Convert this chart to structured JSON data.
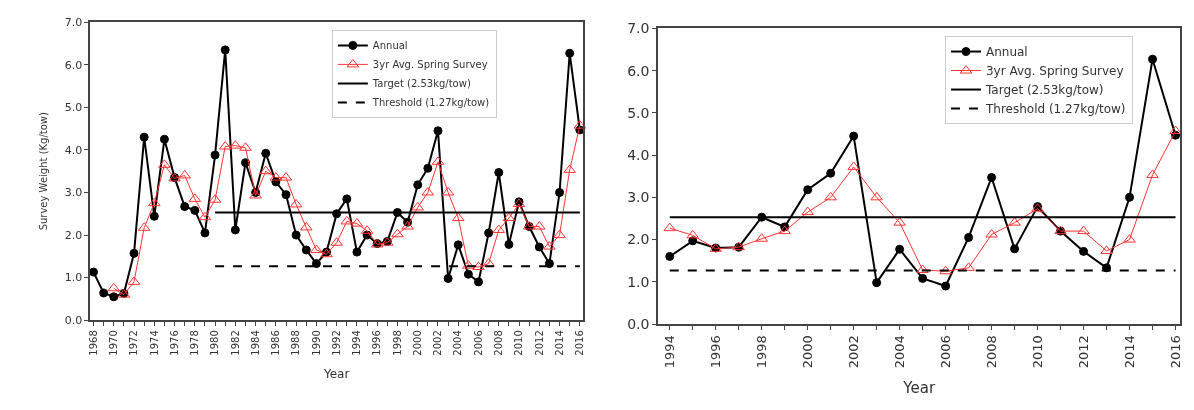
{
  "chart_data": [
    {
      "type": "line",
      "xlabel": "Year",
      "ylabel": "Survey Weight (Kg/tow)",
      "legend": "top right",
      "xlim": [
        1967.7,
        2016.3
      ],
      "ylim": [
        0,
        7
      ],
      "yticks": [
        {
          "value": 0,
          "label": "0.0"
        },
        {
          "value": 1,
          "label": "1.0"
        },
        {
          "value": 2,
          "label": "2.0"
        },
        {
          "value": 3,
          "label": "3.0"
        },
        {
          "value": 4,
          "label": "4.0"
        },
        {
          "value": 5,
          "label": "5.0"
        },
        {
          "value": 6,
          "label": "6.0"
        },
        {
          "value": 7,
          "label": "7.0"
        }
      ],
      "xticks": [
        1968,
        {
          "value": 1969,
          "label": null
        },
        1970,
        {
          "value": 1971,
          "label": null
        },
        1972,
        {
          "value": 1973,
          "label": null
        },
        1974,
        {
          "value": 1975,
          "label": null
        },
        1976,
        {
          "value": 1977,
          "label": null
        },
        1978,
        {
          "value": 1979,
          "label": null
        },
        1980,
        {
          "value": 1981,
          "label": null
        },
        1982,
        {
          "value": 1983,
          "label": null
        },
        1984,
        {
          "value": 1985,
          "label": null
        },
        1986,
        {
          "value": 1987,
          "label": null
        },
        1988,
        {
          "value": 1989,
          "label": null
        },
        1990,
        {
          "value": 1991,
          "label": null
        },
        1992,
        {
          "value": 1993,
          "label": null
        },
        1994,
        {
          "value": 1995,
          "label": null
        },
        1996,
        {
          "value": 1997,
          "label": null
        },
        1998,
        {
          "value": 1999,
          "label": null
        },
        2000,
        {
          "value": 2001,
          "label": null
        },
        2002,
        {
          "value": 2003,
          "label": null
        },
        2004,
        {
          "value": 2005,
          "label": null
        },
        2006,
        {
          "value": 2007,
          "label": null
        },
        2008,
        {
          "value": 2009,
          "label": null
        },
        2010,
        {
          "value": 2011,
          "label": null
        },
        2012,
        {
          "value": 2013,
          "label": null
        },
        2014,
        {
          "value": 2015,
          "label": null
        },
        2016
      ],
      "series": [
        {
          "name": "Annual",
          "color": "#000000",
          "marker": "circle",
          "line_style": "solid",
          "x": [
            1968,
            1969,
            1970,
            1971,
            1972,
            1973,
            1974,
            1975,
            1976,
            1977,
            1978,
            1979,
            1980,
            1981,
            1982,
            1983,
            1984,
            1985,
            1986,
            1987,
            1988,
            1989,
            1990,
            1991,
            1992,
            1993,
            1994,
            1995,
            1996,
            1997,
            1998,
            1999,
            2000,
            2001,
            2002,
            2003,
            2004,
            2005,
            2006,
            2007,
            2008,
            2009,
            2010,
            2011,
            2012,
            2013,
            2014,
            2015,
            2016
          ],
          "values": [
            1.13,
            0.64,
            0.55,
            0.63,
            1.57,
            4.3,
            2.44,
            4.25,
            3.35,
            2.67,
            2.58,
            2.05,
            3.88,
            6.35,
            2.12,
            3.7,
            3.0,
            3.92,
            3.25,
            2.95,
            2.0,
            1.65,
            1.33,
            1.6,
            2.5,
            2.85,
            1.6,
            2.0,
            1.8,
            1.85,
            2.53,
            2.3,
            3.18,
            3.57,
            4.45,
            0.98,
            1.77,
            1.08,
            0.9,
            2.05,
            3.47,
            1.78,
            2.78,
            2.2,
            1.72,
            1.33,
            3.0,
            6.27,
            4.47
          ]
        },
        {
          "name": "3yr Avg. Spring Survey",
          "color": "#ff3333",
          "marker": "triangle",
          "line_style": "solid",
          "x": [
            1970,
            1971,
            1972,
            1973,
            1974,
            1975,
            1976,
            1977,
            1978,
            1979,
            1980,
            1981,
            1982,
            1983,
            1984,
            1985,
            1986,
            1987,
            1988,
            1989,
            1990,
            1991,
            1992,
            1993,
            1994,
            1995,
            1996,
            1997,
            1998,
            1999,
            2000,
            2001,
            2002,
            2003,
            2004,
            2005,
            2006,
            2007,
            2008,
            2009,
            2010,
            2011,
            2012,
            2013,
            2014,
            2015,
            2016
          ],
          "values": [
            0.75,
            0.6,
            0.9,
            2.17,
            2.75,
            3.65,
            3.33,
            3.4,
            2.85,
            2.42,
            2.83,
            4.08,
            4.1,
            4.05,
            2.93,
            3.5,
            3.35,
            3.35,
            2.72,
            2.18,
            1.65,
            1.55,
            1.82,
            2.32,
            2.27,
            2.1,
            1.78,
            1.82,
            2.02,
            2.2,
            2.65,
            3.0,
            3.72,
            3.0,
            2.4,
            1.28,
            1.25,
            1.33,
            2.12,
            2.4,
            2.73,
            2.2,
            2.2,
            1.73,
            2.0,
            3.53,
            4.57
          ]
        },
        {
          "name": "Target (2.53kg/tow)",
          "color": "#000000",
          "marker": "none",
          "line_style": "solid",
          "x": [
            1980,
            2016
          ],
          "values": [
            2.53,
            2.53
          ]
        },
        {
          "name": "Threshold (1.27kg/tow)",
          "color": "#000000",
          "marker": "none",
          "line_style": "dashed",
          "x": [
            1980,
            2016
          ],
          "values": [
            1.27,
            1.27
          ]
        }
      ]
    },
    {
      "type": "line",
      "xlabel": "Year",
      "legend": "top right",
      "xlim": [
        1993.5,
        2016.2
      ],
      "ylim": [
        0,
        7
      ],
      "yticks": [
        {
          "value": 0,
          "label": "0.0"
        },
        {
          "value": 1,
          "label": "1.0"
        },
        {
          "value": 2,
          "label": "2.0"
        },
        {
          "value": 3,
          "label": "3.0"
        },
        {
          "value": 4,
          "label": "4.0"
        },
        {
          "value": 5,
          "label": "5.0"
        },
        {
          "value": 6,
          "label": "6.0"
        },
        {
          "value": 7,
          "label": "7.0"
        }
      ],
      "xticks": [
        1994,
        {
          "value": 1995,
          "label": null
        },
        1996,
        {
          "value": 1997,
          "label": null
        },
        1998,
        {
          "value": 1999,
          "label": null
        },
        2000,
        {
          "value": 2001,
          "label": null
        },
        2002,
        {
          "value": 2003,
          "label": null
        },
        2004,
        {
          "value": 2005,
          "label": null
        },
        2006,
        {
          "value": 2007,
          "label": null
        },
        2008,
        {
          "value": 2009,
          "label": null
        },
        2010,
        {
          "value": 2011,
          "label": null
        },
        2012,
        {
          "value": 2013,
          "label": null
        },
        2014,
        {
          "value": 2015,
          "label": null
        },
        2016
      ],
      "series": [
        {
          "name": "Annual",
          "color": "#000000",
          "marker": "circle",
          "line_style": "solid",
          "x": [
            1994,
            1995,
            1996,
            1997,
            1998,
            1999,
            2000,
            2001,
            2002,
            2003,
            2004,
            2005,
            2006,
            2007,
            2008,
            2009,
            2010,
            2011,
            2012,
            2013,
            2014,
            2015,
            2016
          ],
          "values": [
            1.6,
            1.97,
            1.8,
            1.82,
            2.53,
            2.3,
            3.18,
            3.57,
            4.45,
            0.98,
            1.77,
            1.08,
            0.9,
            2.05,
            3.47,
            1.78,
            2.78,
            2.2,
            1.72,
            1.33,
            3.0,
            6.27,
            4.47
          ]
        },
        {
          "name": "3yr Avg. Spring Survey",
          "color": "#ff3333",
          "marker": "triangle",
          "line_style": "solid",
          "x": [
            1994,
            1995,
            1996,
            1997,
            1998,
            1999,
            2000,
            2001,
            2002,
            2003,
            2004,
            2005,
            2006,
            2007,
            2008,
            2009,
            2010,
            2011,
            2012,
            2013,
            2014,
            2015,
            2016
          ],
          "values": [
            2.27,
            2.1,
            1.78,
            1.82,
            2.02,
            2.2,
            2.65,
            3.0,
            3.72,
            3.0,
            2.4,
            1.28,
            1.25,
            1.33,
            2.12,
            2.4,
            2.73,
            2.2,
            2.2,
            1.73,
            2.0,
            3.53,
            4.57
          ]
        },
        {
          "name": "Target (2.53kg/tow)",
          "color": "#000000",
          "marker": "none",
          "line_style": "solid",
          "x": [
            1994,
            2016
          ],
          "values": [
            2.53,
            2.53
          ]
        },
        {
          "name": "Threshold (1.27kg/tow)",
          "color": "#000000",
          "marker": "none",
          "line_style": "dashed",
          "x": [
            1994,
            2016
          ],
          "values": [
            1.27,
            1.27
          ]
        }
      ]
    }
  ]
}
